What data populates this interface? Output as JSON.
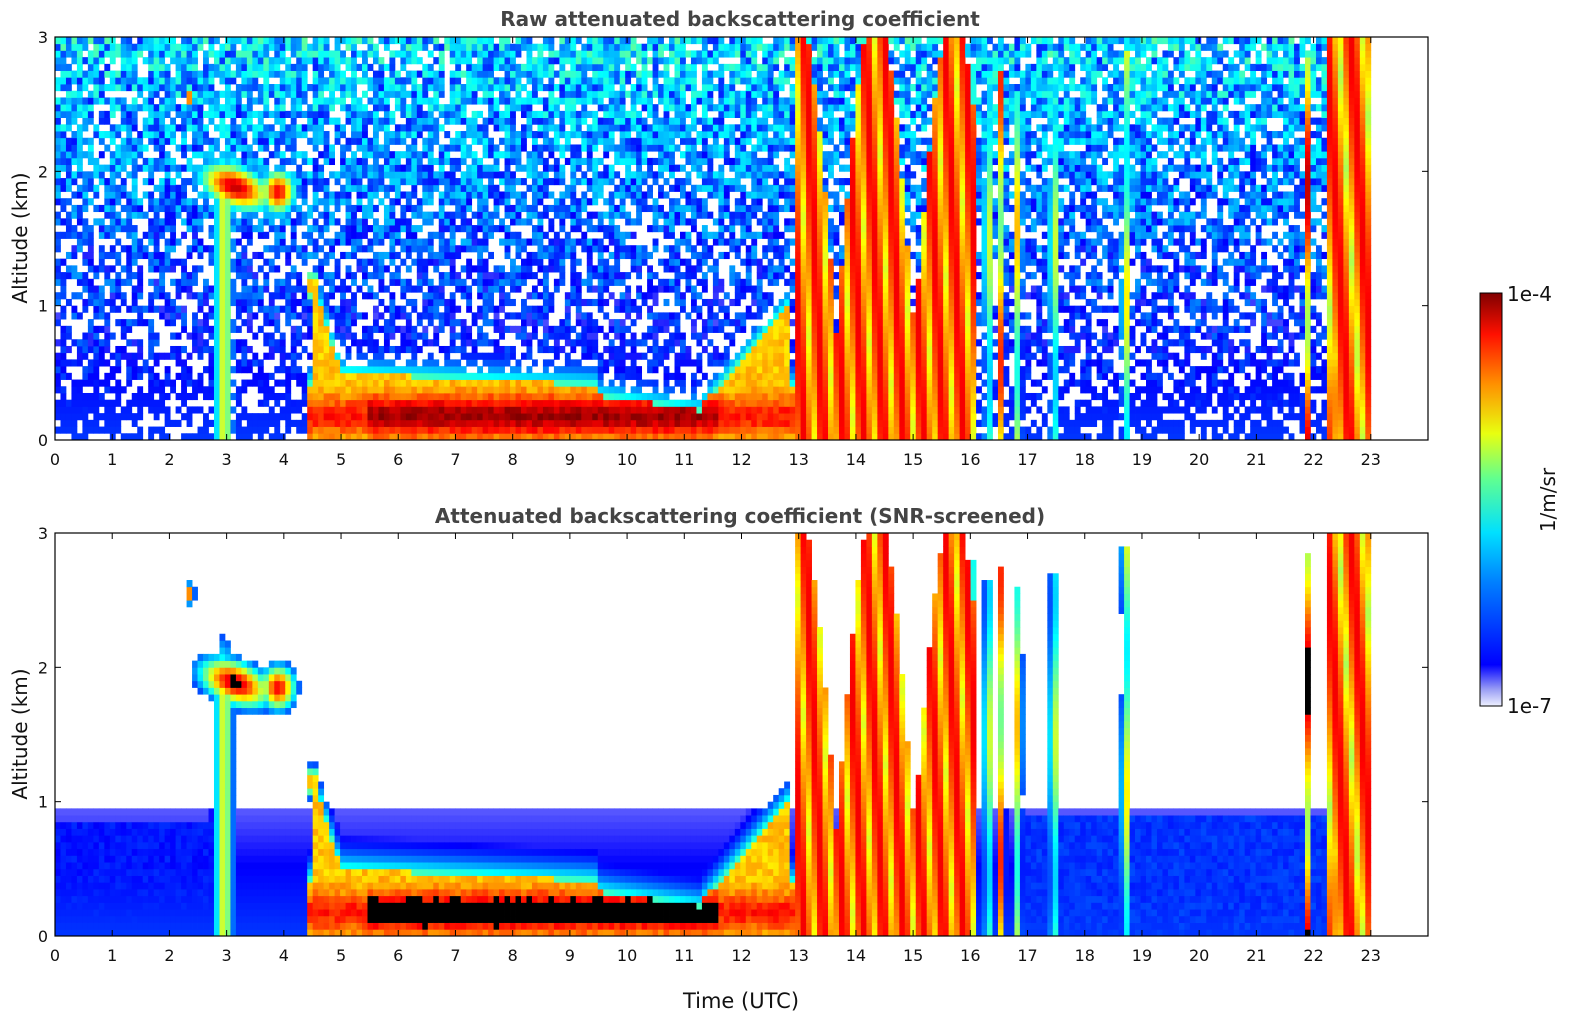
{
  "chart_data": [
    {
      "type": "heatmap",
      "title": "Raw attenuated backscattering coefficient",
      "xlabel": "",
      "ylabel": "Altitude (km)",
      "xlim": [
        0,
        24
      ],
      "ylim": [
        0,
        3
      ],
      "x_ticks": [
        "0",
        "1",
        "2",
        "3",
        "4",
        "5",
        "6",
        "7",
        "8",
        "9",
        "10",
        "11",
        "12",
        "13",
        "14",
        "15",
        "16",
        "17",
        "18",
        "19",
        "20",
        "21",
        "22",
        "23"
      ],
      "y_ticks": [
        "0",
        "1",
        "2",
        "3"
      ],
      "scale": "log",
      "data_extent_hours": [
        0,
        23
      ],
      "features": [
        {
          "name": "elevated aerosol layer",
          "time": [
            2.1,
            4.3
          ],
          "altitude_km": [
            1.6,
            2.2
          ],
          "level": "high"
        },
        {
          "name": "descending plume",
          "time": [
            2.8,
            3.1
          ],
          "altitude_km": [
            0,
            2.6
          ],
          "level": "mid"
        },
        {
          "name": "boundary-layer aerosol",
          "time": [
            4.5,
            12.8
          ],
          "altitude_km": [
            0,
            1.2
          ],
          "level": "high"
        },
        {
          "name": "convective plumes",
          "time": [
            13.0,
            16.0
          ],
          "altitude_km": [
            0,
            3.0
          ],
          "level": "high"
        },
        {
          "name": "evening plumes",
          "time": [
            22.3,
            23.0
          ],
          "altitude_km": [
            0,
            3.0
          ],
          "level": "high"
        }
      ]
    },
    {
      "type": "heatmap",
      "title": "Attenuated backscattering coefficient (SNR-screened)",
      "xlabel": "Time (UTC)",
      "ylabel": "Altitude (km)",
      "xlim": [
        0,
        24
      ],
      "ylim": [
        0,
        3
      ],
      "x_ticks": [
        "0",
        "1",
        "2",
        "3",
        "4",
        "5",
        "6",
        "7",
        "8",
        "9",
        "10",
        "11",
        "12",
        "13",
        "14",
        "15",
        "16",
        "17",
        "18",
        "19",
        "20",
        "21",
        "22",
        "23"
      ],
      "y_ticks": [
        "0",
        "1",
        "2",
        "3"
      ],
      "scale": "log",
      "data_extent_hours": [
        0,
        23
      ],
      "features": [
        {
          "name": "elevated aerosol layer",
          "time": [
            2.1,
            4.3
          ],
          "altitude_km": [
            1.6,
            2.2
          ],
          "level": "saturated"
        },
        {
          "name": "boundary-layer aerosol",
          "time": [
            4.5,
            12.8
          ],
          "altitude_km": [
            0,
            1.2
          ],
          "level": "high"
        },
        {
          "name": "convective plumes",
          "time": [
            13.0,
            16.0
          ],
          "altitude_km": [
            0,
            3.0
          ],
          "level": "high"
        },
        {
          "name": "nighttime residual layer",
          "time": [
            17.0,
            22.2
          ],
          "altitude_km": [
            0,
            0.9
          ],
          "level": "low"
        }
      ]
    }
  ],
  "colorbar": {
    "label": "1/m/sr",
    "max_label": "1e-4",
    "min_label": "1e-7",
    "range": [
      1e-07,
      0.0001
    ],
    "colormap": "jet"
  },
  "colors": {
    "title_text": "#444444",
    "axis_text": "#111111",
    "saturated": "#000000"
  }
}
